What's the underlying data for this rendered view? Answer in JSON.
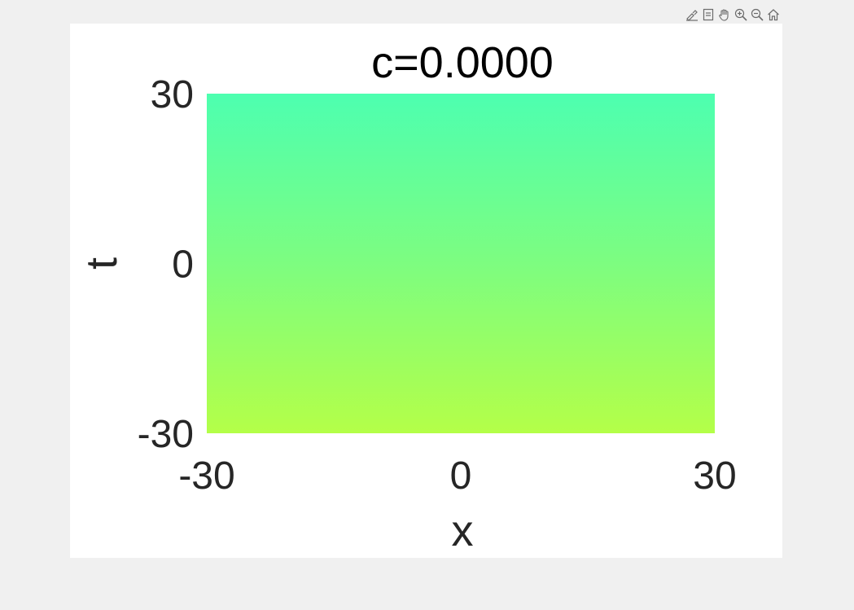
{
  "toolbar": {
    "tools": [
      {
        "name": "brush-icon"
      },
      {
        "name": "datatip-icon"
      },
      {
        "name": "pan-hand-icon"
      },
      {
        "name": "zoom-in-icon"
      },
      {
        "name": "zoom-out-icon"
      },
      {
        "name": "home-icon"
      }
    ]
  },
  "chart_data": {
    "type": "heatmap",
    "title": "c=0.0000",
    "xlabel": "x",
    "ylabel": "t",
    "xlim": [
      -30,
      30
    ],
    "ylim": [
      -30,
      30
    ],
    "xticks": [
      -30,
      0,
      30
    ],
    "yticks": [
      -30,
      0,
      30
    ],
    "xtick_labels": [
      "-30",
      "0",
      "30"
    ],
    "ytick_labels": [
      "-30",
      "0",
      "30"
    ],
    "grid": false,
    "colormap": "parula-like",
    "color_gradient": [
      {
        "t": 30,
        "color": "#4dffb0"
      },
      {
        "t": 0,
        "color": "#7dfd80"
      },
      {
        "t": -30,
        "color": "#b4ff48"
      }
    ]
  }
}
